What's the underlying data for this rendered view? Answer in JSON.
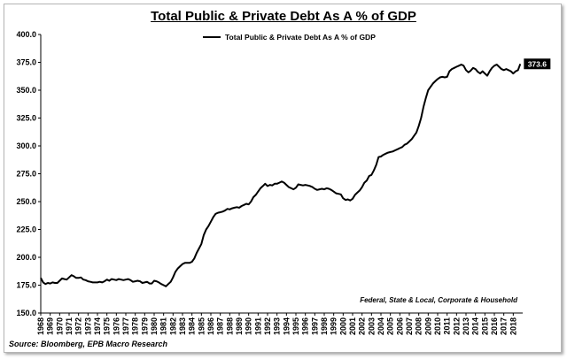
{
  "chart_data": {
    "type": "line",
    "title": "Total Public & Private Debt As A % of GDP",
    "series": [
      {
        "name": "Total Public & Private Debt As A % of GDP",
        "color": "#000000",
        "points": [
          [
            1968.0,
            181.5
          ],
          [
            1968.25,
            177.5
          ],
          [
            1968.5,
            176.0
          ],
          [
            1968.75,
            177.0
          ],
          [
            1969.0,
            176.5
          ],
          [
            1969.25,
            177.5
          ],
          [
            1969.5,
            177.0
          ],
          [
            1969.75,
            177.0
          ],
          [
            1970.0,
            179.0
          ],
          [
            1970.25,
            181.0
          ],
          [
            1970.5,
            180.5
          ],
          [
            1970.75,
            180.0
          ],
          [
            1971.0,
            182.0
          ],
          [
            1971.25,
            184.0
          ],
          [
            1971.5,
            183.0
          ],
          [
            1971.75,
            181.5
          ],
          [
            1972.0,
            181.5
          ],
          [
            1972.25,
            182.0
          ],
          [
            1972.5,
            180.0
          ],
          [
            1972.75,
            179.5
          ],
          [
            1973.0,
            178.5
          ],
          [
            1973.25,
            178.0
          ],
          [
            1973.5,
            177.5
          ],
          [
            1973.75,
            177.5
          ],
          [
            1974.0,
            177.5
          ],
          [
            1974.25,
            178.0
          ],
          [
            1974.5,
            177.5
          ],
          [
            1974.75,
            178.5
          ],
          [
            1975.0,
            180.0
          ],
          [
            1975.25,
            179.0
          ],
          [
            1975.5,
            180.5
          ],
          [
            1975.75,
            180.0
          ],
          [
            1976.0,
            179.5
          ],
          [
            1976.25,
            180.5
          ],
          [
            1976.5,
            180.0
          ],
          [
            1976.75,
            179.5
          ],
          [
            1977.0,
            180.0
          ],
          [
            1977.25,
            180.5
          ],
          [
            1977.5,
            179.5
          ],
          [
            1977.75,
            178.0
          ],
          [
            1978.0,
            178.5
          ],
          [
            1978.25,
            179.0
          ],
          [
            1978.5,
            178.5
          ],
          [
            1978.75,
            177.0
          ],
          [
            1979.0,
            177.5
          ],
          [
            1979.25,
            178.0
          ],
          [
            1979.5,
            176.5
          ],
          [
            1979.75,
            176.5
          ],
          [
            1980.0,
            179.0
          ],
          [
            1980.25,
            178.5
          ],
          [
            1980.5,
            177.5
          ],
          [
            1980.75,
            176.0
          ],
          [
            1981.0,
            175.0
          ],
          [
            1981.25,
            174.0
          ],
          [
            1981.5,
            176.0
          ],
          [
            1981.75,
            178.0
          ],
          [
            1982.0,
            182.0
          ],
          [
            1982.25,
            187.0
          ],
          [
            1982.5,
            190.0
          ],
          [
            1982.75,
            192.0
          ],
          [
            1983.0,
            194.0
          ],
          [
            1983.25,
            195.0
          ],
          [
            1983.5,
            195.0
          ],
          [
            1983.75,
            195.0
          ],
          [
            1984.0,
            196.0
          ],
          [
            1984.25,
            199.0
          ],
          [
            1984.5,
            204.0
          ],
          [
            1984.75,
            208.0
          ],
          [
            1985.0,
            212.0
          ],
          [
            1985.25,
            220.0
          ],
          [
            1985.5,
            225.0
          ],
          [
            1985.75,
            228.0
          ],
          [
            1986.0,
            232.0
          ],
          [
            1986.25,
            236.0
          ],
          [
            1986.5,
            239.0
          ],
          [
            1986.75,
            240.0
          ],
          [
            1987.0,
            240.5
          ],
          [
            1987.25,
            241.0
          ],
          [
            1987.5,
            242.0
          ],
          [
            1987.75,
            243.5
          ],
          [
            1988.0,
            243.0
          ],
          [
            1988.25,
            244.0
          ],
          [
            1988.5,
            244.5
          ],
          [
            1988.75,
            245.0
          ],
          [
            1989.0,
            244.5
          ],
          [
            1989.25,
            246.0
          ],
          [
            1989.5,
            247.0
          ],
          [
            1989.75,
            248.0
          ],
          [
            1990.0,
            247.5
          ],
          [
            1990.25,
            250.0
          ],
          [
            1990.5,
            254.0
          ],
          [
            1990.75,
            256.0
          ],
          [
            1991.0,
            259.0
          ],
          [
            1991.25,
            262.0
          ],
          [
            1991.5,
            264.0
          ],
          [
            1991.75,
            266.0
          ],
          [
            1992.0,
            264.0
          ],
          [
            1992.25,
            265.0
          ],
          [
            1992.5,
            264.5
          ],
          [
            1992.75,
            266.0
          ],
          [
            1993.0,
            266.0
          ],
          [
            1993.25,
            267.0
          ],
          [
            1993.5,
            268.0
          ],
          [
            1993.75,
            267.0
          ],
          [
            1994.0,
            265.0
          ],
          [
            1994.25,
            263.0
          ],
          [
            1994.5,
            262.0
          ],
          [
            1994.75,
            261.0
          ],
          [
            1995.0,
            262.5
          ],
          [
            1995.25,
            265.5
          ],
          [
            1995.5,
            265.0
          ],
          [
            1995.75,
            264.5
          ],
          [
            1996.0,
            265.0
          ],
          [
            1996.25,
            264.5
          ],
          [
            1996.5,
            264.0
          ],
          [
            1996.75,
            263.0
          ],
          [
            1997.0,
            261.5
          ],
          [
            1997.25,
            260.5
          ],
          [
            1997.5,
            261.0
          ],
          [
            1997.75,
            261.5
          ],
          [
            1998.0,
            261.0
          ],
          [
            1998.25,
            262.0
          ],
          [
            1998.5,
            261.5
          ],
          [
            1998.75,
            260.5
          ],
          [
            1999.0,
            259.0
          ],
          [
            1999.25,
            257.5
          ],
          [
            1999.5,
            257.0
          ],
          [
            1999.75,
            256.5
          ],
          [
            2000.0,
            253.0
          ],
          [
            2000.25,
            251.5
          ],
          [
            2000.5,
            252.0
          ],
          [
            2000.75,
            251.0
          ],
          [
            2001.0,
            252.5
          ],
          [
            2001.25,
            256.0
          ],
          [
            2001.5,
            258.0
          ],
          [
            2001.75,
            260.0
          ],
          [
            2002.0,
            263.0
          ],
          [
            2002.25,
            267.0
          ],
          [
            2002.5,
            269.0
          ],
          [
            2002.75,
            273.0
          ],
          [
            2003.0,
            274.0
          ],
          [
            2003.25,
            278.0
          ],
          [
            2003.5,
            283.0
          ],
          [
            2003.75,
            290.0
          ],
          [
            2004.0,
            290.5
          ],
          [
            2004.25,
            292.0
          ],
          [
            2004.5,
            293.0
          ],
          [
            2004.75,
            294.0
          ],
          [
            2005.0,
            294.5
          ],
          [
            2005.25,
            295.0
          ],
          [
            2005.5,
            296.0
          ],
          [
            2005.75,
            297.0
          ],
          [
            2006.0,
            298.0
          ],
          [
            2006.25,
            299.0
          ],
          [
            2006.5,
            301.0
          ],
          [
            2006.75,
            302.0
          ],
          [
            2007.0,
            304.0
          ],
          [
            2007.25,
            306.0
          ],
          [
            2007.5,
            309.0
          ],
          [
            2007.75,
            312.0
          ],
          [
            2008.0,
            318.0
          ],
          [
            2008.25,
            325.0
          ],
          [
            2008.5,
            335.0
          ],
          [
            2008.75,
            343.0
          ],
          [
            2009.0,
            350.0
          ],
          [
            2009.25,
            353.0
          ],
          [
            2009.5,
            356.0
          ],
          [
            2009.75,
            358.0
          ],
          [
            2010.0,
            360.0
          ],
          [
            2010.25,
            361.5
          ],
          [
            2010.5,
            362.0
          ],
          [
            2010.75,
            361.5
          ],
          [
            2011.0,
            362.0
          ],
          [
            2011.25,
            367.0
          ],
          [
            2011.5,
            369.0
          ],
          [
            2011.75,
            370.0
          ],
          [
            2012.0,
            371.0
          ],
          [
            2012.25,
            372.0
          ],
          [
            2012.5,
            373.0
          ],
          [
            2012.75,
            372.0
          ],
          [
            2013.0,
            368.0
          ],
          [
            2013.25,
            366.0
          ],
          [
            2013.5,
            367.5
          ],
          [
            2013.75,
            370.0
          ],
          [
            2014.0,
            369.0
          ],
          [
            2014.25,
            366.5
          ],
          [
            2014.5,
            365.0
          ],
          [
            2014.75,
            367.0
          ],
          [
            2015.0,
            365.0
          ],
          [
            2015.25,
            363.0
          ],
          [
            2015.5,
            367.0
          ],
          [
            2015.75,
            370.0
          ],
          [
            2016.0,
            372.0
          ],
          [
            2016.25,
            373.0
          ],
          [
            2016.5,
            371.0
          ],
          [
            2016.75,
            369.0
          ],
          [
            2017.0,
            368.0
          ],
          [
            2017.25,
            369.0
          ],
          [
            2017.5,
            368.0
          ],
          [
            2017.75,
            367.0
          ],
          [
            2018.0,
            365.0
          ],
          [
            2018.25,
            367.0
          ],
          [
            2018.5,
            368.0
          ],
          [
            2018.75,
            373.6
          ]
        ]
      }
    ],
    "xlim": [
      1968,
      2019
    ],
    "ylim": [
      150,
      400
    ],
    "y_ticks": [
      "150.0",
      "175.0",
      "200.0",
      "225.0",
      "250.0",
      "275.0",
      "300.0",
      "325.0",
      "350.0",
      "375.0",
      "400.0"
    ],
    "x_ticks": [
      "1968",
      "1969",
      "1970",
      "1971",
      "1972",
      "1973",
      "1974",
      "1975",
      "1976",
      "1977",
      "1978",
      "1979",
      "1980",
      "1981",
      "1982",
      "1983",
      "1984",
      "1985",
      "1986",
      "1987",
      "1988",
      "1989",
      "1990",
      "1991",
      "1992",
      "1993",
      "1994",
      "1995",
      "1996",
      "1997",
      "1998",
      "1999",
      "2000",
      "2001",
      "2002",
      "2003",
      "2004",
      "2005",
      "2006",
      "2007",
      "2008",
      "2009",
      "2010",
      "2011",
      "2012",
      "2013",
      "2014",
      "2015",
      "2016",
      "2017",
      "2018"
    ],
    "end_label": "373.6",
    "annotation": "Federal, State & Local, Corporate & Household",
    "legend_position": "top-center",
    "grid": false
  },
  "source": "Source: Bloomberg, EPB Macro Research"
}
